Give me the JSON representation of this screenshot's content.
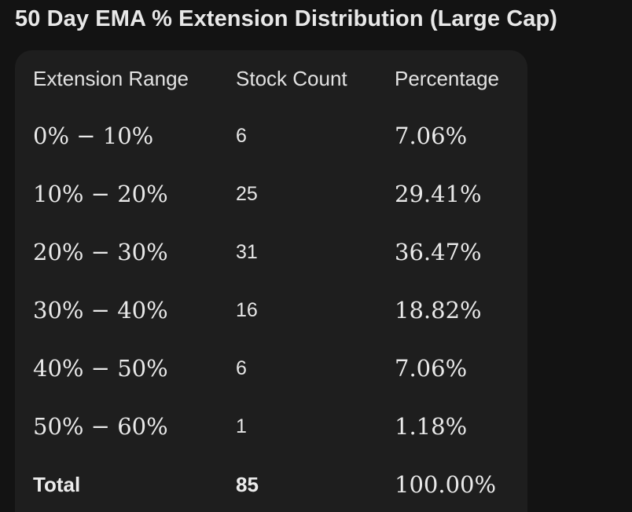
{
  "title": "50 Day EMA % Extension Distribution (Large Cap)",
  "table": {
    "headers": [
      "Extension Range",
      "Stock Count",
      "Percentage"
    ],
    "rows": [
      {
        "range": "0% − 10%",
        "count": "6",
        "percent": "7.06%"
      },
      {
        "range": "10% − 20%",
        "count": "25",
        "percent": "29.41%"
      },
      {
        "range": "20% − 30%",
        "count": "31",
        "percent": "36.47%"
      },
      {
        "range": "30% − 40%",
        "count": "16",
        "percent": "18.82%"
      },
      {
        "range": "40% − 50%",
        "count": "6",
        "percent": "7.06%"
      },
      {
        "range": "50% − 60%",
        "count": "1",
        "percent": "1.18%"
      }
    ],
    "total": {
      "label": "Total",
      "count": "85",
      "percent": "100.00%"
    }
  },
  "colors": {
    "background": "#131313",
    "card": "#1e1e1e",
    "text": "#e6e6e6"
  }
}
